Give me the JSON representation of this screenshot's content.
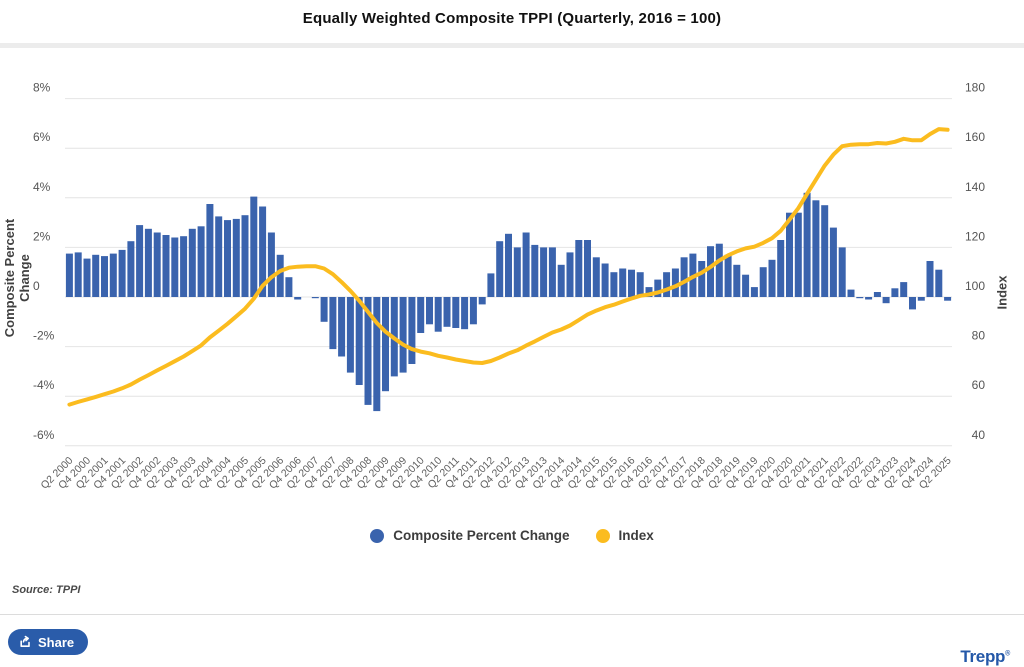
{
  "title": "Equally Weighted Composite TPPI (Quarterly, 2016 = 100)",
  "source_note": "Source: TPPI",
  "share_button": {
    "label": "Share"
  },
  "brand": {
    "logo_text": "Trepp",
    "registered_mark": "®"
  },
  "legend": {
    "items": [
      {
        "label": "Composite Percent Change",
        "color": "#3a63ad"
      },
      {
        "label": "Index",
        "color": "#fbbc1f"
      }
    ]
  },
  "chart_data": {
    "type": "bar",
    "subtype": "combo-bar-line-dual-axis",
    "title": "Equally Weighted Composite TPPI (Quarterly, 2016 = 100)",
    "xlabel": "",
    "x_tick_every": 2,
    "grid": true,
    "legend_position": "bottom-center",
    "left_axis": {
      "title": "Composite Percent Change",
      "ticks": [
        8,
        6,
        4,
        2,
        0,
        -2,
        -4,
        -6
      ],
      "tick_labels": [
        "8%",
        "6%",
        "4%",
        "2%",
        "0",
        "-2%",
        "-4%",
        "-6%"
      ],
      "ylim": [
        -6.5,
        8.5
      ]
    },
    "right_axis": {
      "title": "Index",
      "ticks": [
        180,
        160,
        140,
        120,
        100,
        80,
        60,
        40
      ],
      "tick_labels": [
        "180",
        "160",
        "140",
        "120",
        "100",
        "80",
        "60",
        "40"
      ],
      "ylim": [
        35,
        185
      ]
    },
    "categories": [
      "Q2 2000",
      "Q3 2000",
      "Q4 2000",
      "Q1 2001",
      "Q2 2001",
      "Q3 2001",
      "Q4 2001",
      "Q1 2002",
      "Q2 2002",
      "Q3 2002",
      "Q4 2002",
      "Q1 2003",
      "Q2 2003",
      "Q3 2003",
      "Q4 2003",
      "Q1 2004",
      "Q2 2004",
      "Q3 2004",
      "Q4 2004",
      "Q1 2005",
      "Q2 2005",
      "Q3 2005",
      "Q4 2005",
      "Q1 2006",
      "Q2 2006",
      "Q3 2006",
      "Q4 2006",
      "Q1 2007",
      "Q2 2007",
      "Q3 2007",
      "Q4 2007",
      "Q1 2008",
      "Q2 2008",
      "Q3 2008",
      "Q4 2008",
      "Q1 2009",
      "Q2 2009",
      "Q3 2009",
      "Q4 2009",
      "Q1 2010",
      "Q2 2010",
      "Q3 2010",
      "Q4 2010",
      "Q1 2011",
      "Q2 2011",
      "Q3 2011",
      "Q4 2011",
      "Q1 2012",
      "Q2 2012",
      "Q3 2012",
      "Q4 2012",
      "Q1 2013",
      "Q2 2013",
      "Q3 2013",
      "Q4 2013",
      "Q1 2014",
      "Q2 2014",
      "Q3 2014",
      "Q4 2014",
      "Q1 2015",
      "Q2 2015",
      "Q3 2015",
      "Q4 2015",
      "Q1 2016",
      "Q2 2016",
      "Q3 2016",
      "Q4 2016",
      "Q1 2017",
      "Q2 2017",
      "Q3 2017",
      "Q4 2017",
      "Q1 2018",
      "Q2 2018",
      "Q3 2018",
      "Q4 2018",
      "Q1 2019",
      "Q2 2019",
      "Q3 2019",
      "Q4 2019",
      "Q1 2020",
      "Q2 2020",
      "Q3 2020",
      "Q4 2020",
      "Q1 2021",
      "Q2 2021",
      "Q3 2021",
      "Q4 2021",
      "Q1 2022",
      "Q2 2022",
      "Q3 2022",
      "Q4 2022",
      "Q1 2023",
      "Q2 2023",
      "Q3 2023",
      "Q4 2023",
      "Q1 2024",
      "Q2 2024",
      "Q3 2024",
      "Q4 2024",
      "Q1 2025",
      "Q2 2025"
    ],
    "series": [
      {
        "name": "Composite Percent Change",
        "type": "bar",
        "axis": "left",
        "unit": "%",
        "color": "#3a63ad",
        "values": [
          1.75,
          1.8,
          1.55,
          1.7,
          1.65,
          1.75,
          1.9,
          2.25,
          2.9,
          2.75,
          2.6,
          2.5,
          2.4,
          2.45,
          2.75,
          2.85,
          3.75,
          3.25,
          3.1,
          3.15,
          3.3,
          4.05,
          3.65,
          2.6,
          1.7,
          0.8,
          -0.1,
          0.0,
          -0.05,
          -1.0,
          -2.1,
          -2.4,
          -3.05,
          -3.55,
          -4.35,
          -4.6,
          -3.8,
          -3.2,
          -3.05,
          -2.7,
          -1.45,
          -1.1,
          -1.4,
          -1.2,
          -1.25,
          -1.3,
          -1.1,
          -0.3,
          0.95,
          2.25,
          2.55,
          2.0,
          2.6,
          2.1,
          2.0,
          2.0,
          1.3,
          1.8,
          2.3,
          2.3,
          1.6,
          1.35,
          1.0,
          1.15,
          1.1,
          1.0,
          0.4,
          0.7,
          1.0,
          1.15,
          1.6,
          1.75,
          1.45,
          2.05,
          2.15,
          1.7,
          1.3,
          0.9,
          0.4,
          1.2,
          1.5,
          2.3,
          3.4,
          3.4,
          4.2,
          3.9,
          3.7,
          2.8,
          2.0,
          0.3,
          -0.05,
          -0.1,
          0.2,
          -0.25,
          0.35,
          0.6,
          -0.5,
          -0.15,
          1.45,
          1.1,
          -0.15
        ]
      },
      {
        "name": "Index",
        "type": "line",
        "axis": "right",
        "color": "#fbbc1f",
        "values": [
          56.6,
          57.7,
          58.7,
          59.7,
          60.8,
          61.9,
          63.2,
          64.7,
          66.7,
          68.5,
          70.4,
          72.2,
          74.1,
          76.0,
          78.2,
          80.5,
          83.7,
          86.4,
          89.2,
          92.2,
          95.3,
          99.3,
          104.5,
          108.0,
          110.5,
          111.8,
          112.2,
          112.4,
          112.4,
          111.5,
          109.2,
          106.0,
          102.5,
          98.5,
          94.0,
          89.5,
          86.0,
          83.3,
          80.8,
          79.0,
          78.0,
          77.3,
          76.3,
          75.6,
          74.8,
          74.2,
          73.6,
          73.4,
          74.2,
          75.6,
          77.2,
          78.5,
          80.4,
          82.1,
          83.9,
          85.7,
          86.9,
          88.5,
          90.7,
          92.9,
          94.5,
          95.9,
          96.9,
          98.2,
          99.4,
          100.5,
          101.0,
          101.8,
          103.0,
          104.3,
          106.1,
          108.1,
          109.8,
          112.1,
          114.7,
          116.8,
          118.4,
          119.6,
          120.3,
          121.8,
          123.7,
          126.7,
          131.2,
          135.8,
          141.6,
          147.3,
          153.0,
          157.4,
          160.8,
          161.4,
          161.6,
          161.6,
          162.1,
          161.9,
          162.6,
          163.8,
          163.2,
          163.2,
          165.7,
          167.7,
          167.4
        ]
      }
    ]
  }
}
